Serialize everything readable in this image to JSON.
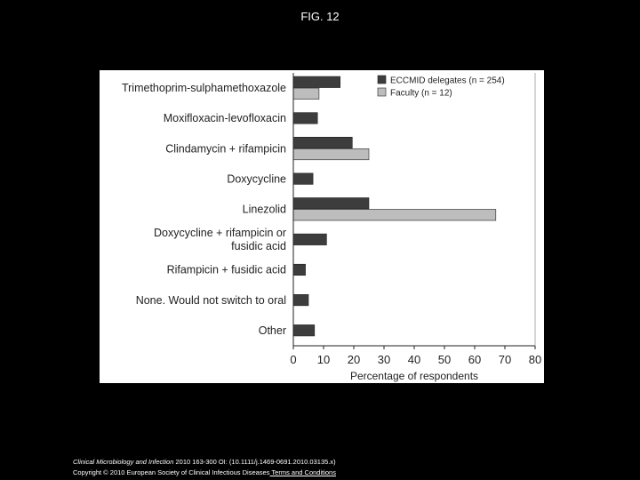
{
  "page": {
    "title": "FIG. 12"
  },
  "chart_data": {
    "type": "bar",
    "orientation": "horizontal",
    "categories": [
      "Trimethoprim-sulphamethoxazole",
      "Moxifloxacin-levofloxacin",
      "Clindamycin + rifampicin",
      "Doxycycline",
      "Linezolid",
      [
        "Doxycycline + rifampicin or",
        "fusidic acid"
      ],
      "Rifampicin + fusidic acid",
      "None. Would not switch to oral",
      "Other"
    ],
    "series": [
      {
        "name": "ECCMID delegates (n = 254)",
        "color": "#3d3d3d",
        "values": [
          15.5,
          8,
          19.5,
          6.5,
          25,
          11,
          4,
          5,
          7
        ]
      },
      {
        "name": "Faculty (n = 12)",
        "color": "#bdbdbd",
        "values": [
          8.5,
          null,
          25,
          null,
          67,
          null,
          null,
          null,
          null
        ]
      }
    ],
    "xlabel": "Percentage of respondents",
    "xlim": [
      0,
      80
    ],
    "xticks": [
      0,
      10,
      20,
      30,
      40,
      50,
      60,
      70,
      80
    ],
    "grid": false,
    "legend_position": "top-right"
  },
  "footer": {
    "citation_journal": "Clinical Microbiology and Infection",
    "citation_rest": " 2010 163-300 OI: (10.1111/j.1469-0691.2010.03135.x)",
    "copyright": "Copyright © 2010 European Society of Clinical Infectious Diseases",
    "terms_link": " Terms and Conditions"
  }
}
